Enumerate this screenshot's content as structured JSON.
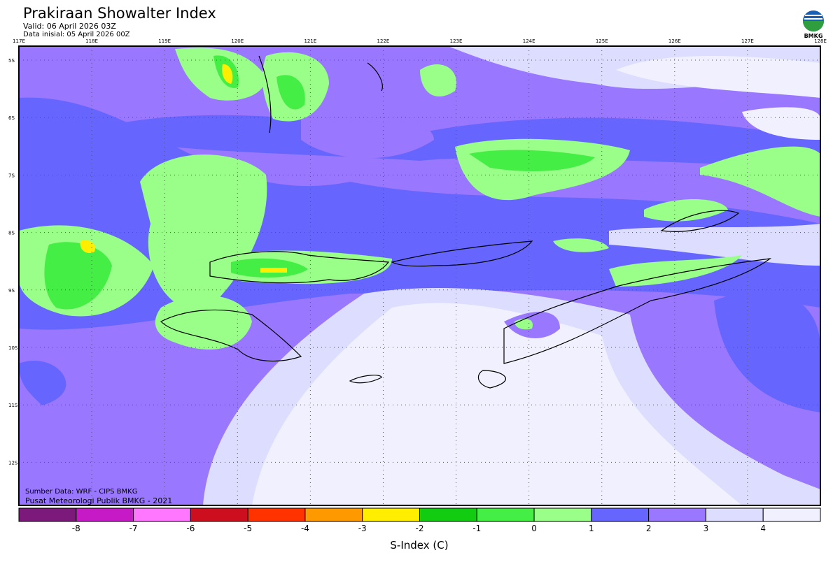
{
  "header": {
    "title": "Prakiraan Showalter Index",
    "valid": "Valid: 06 April 2026 03Z",
    "initial": "Data inisial: 05 April 2026 00Z",
    "logo_text": "BMKG"
  },
  "map": {
    "lon_labels": [
      "117E",
      "118E",
      "119E",
      "120E",
      "121E",
      "122E",
      "123E",
      "124E",
      "125E",
      "126E",
      "127E",
      "128E"
    ],
    "lat_labels": [
      "5S",
      "6S",
      "7S",
      "8S",
      "9S",
      "10S",
      "11S",
      "12S"
    ],
    "source": "Sumber Data: WRF - CIPS BMKG",
    "credit": "Pusat Meteorologi Publik BMKG - 2021"
  },
  "colorbar": {
    "colors": [
      "#7b1a7b",
      "#c61ac6",
      "#ff77ff",
      "#cc0e1e",
      "#ff3300",
      "#ff9900",
      "#ffee00",
      "#11cc11",
      "#44ee44",
      "#99ff88",
      "#6666ff",
      "#9977ff",
      "#ddddff",
      "#f0f0ff"
    ],
    "ticks": [
      "-8",
      "-7",
      "-6",
      "-5",
      "-4",
      "-3",
      "-2",
      "-1",
      "0",
      "1",
      "2",
      "3",
      "4"
    ],
    "label": "S-Index (C)"
  }
}
